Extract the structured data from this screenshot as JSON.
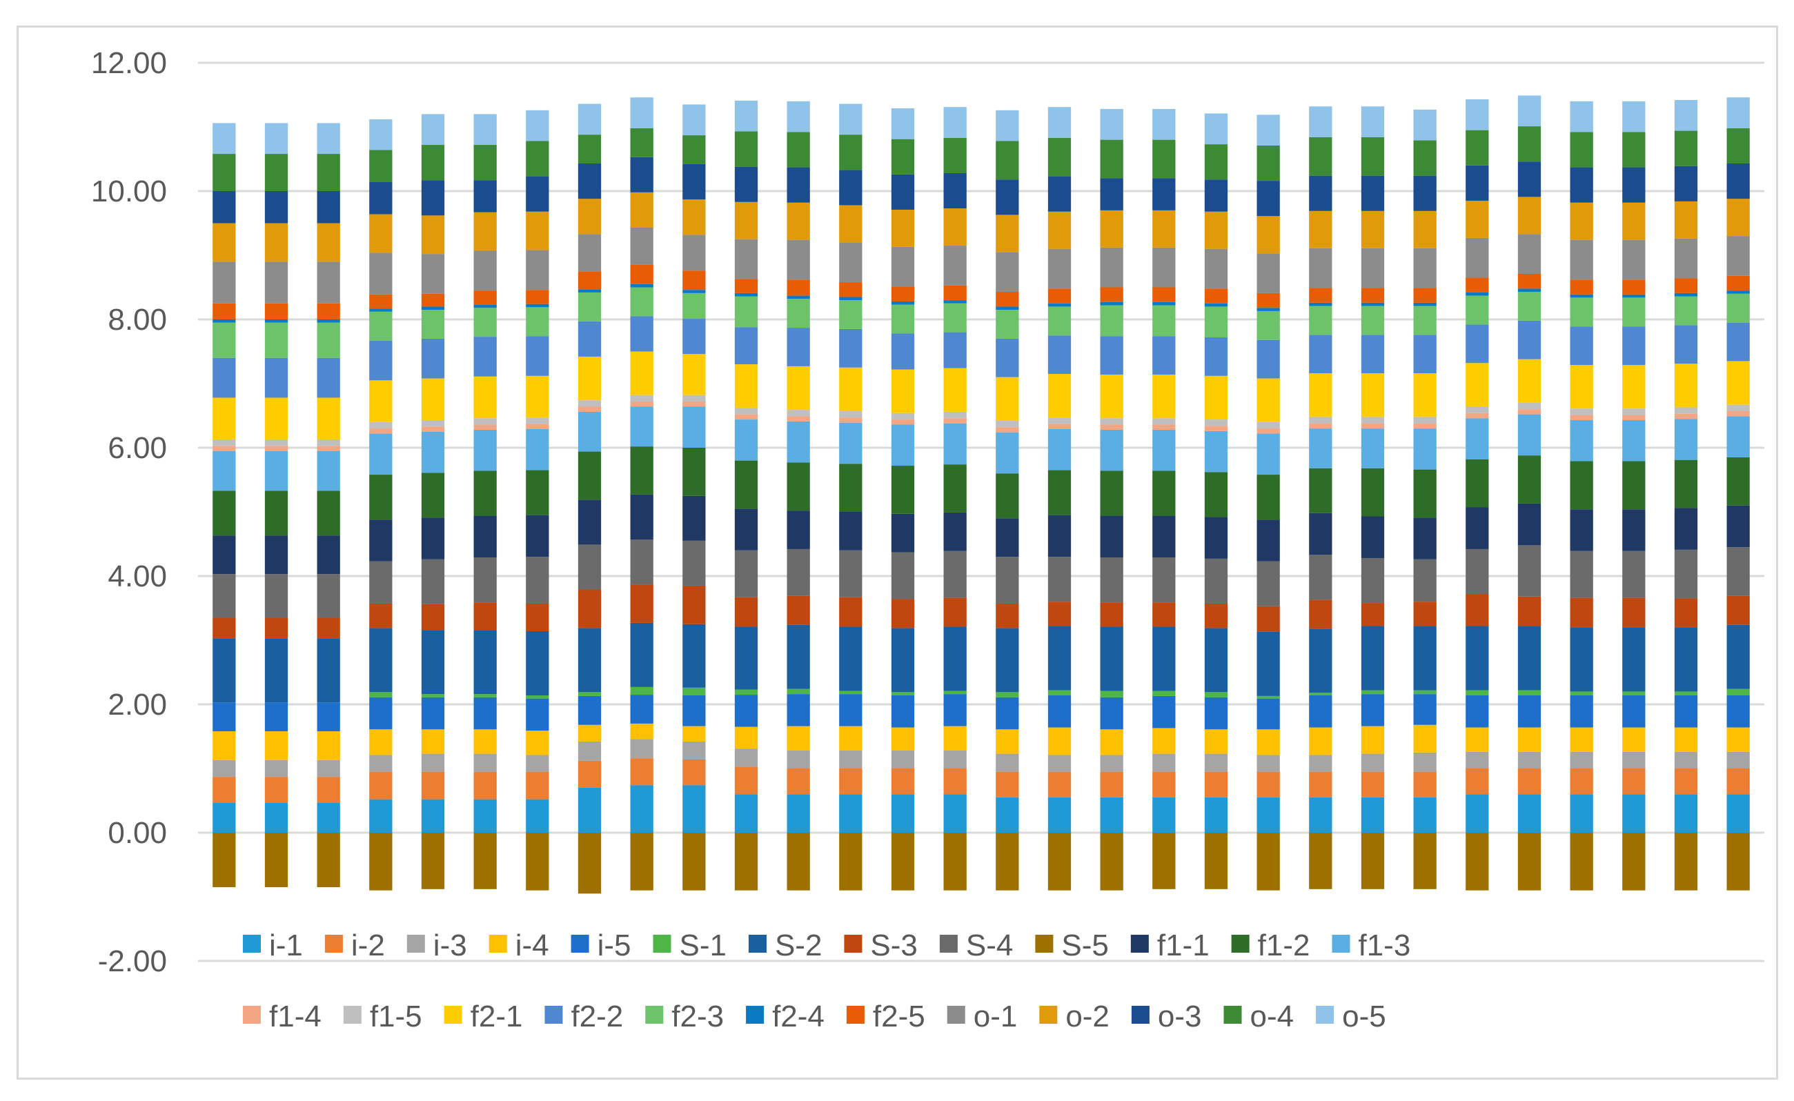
{
  "chart_data": {
    "type": "stacked-bar",
    "title": "",
    "xlabel": "",
    "ylabel": "",
    "ylim": [
      -2,
      12
    ],
    "yticks": [
      "-2.00",
      "0.00",
      "2.00",
      "4.00",
      "6.00",
      "8.00",
      "10.00",
      "12.00"
    ],
    "ytick_values": [
      -2,
      0,
      2,
      4,
      6,
      8,
      10,
      12
    ],
    "grid": true,
    "legend_position": "bottom",
    "bar_count": 30,
    "series": [
      {
        "name": "i-1",
        "color": "#1f9ad6",
        "values": [
          0.47,
          0.47,
          0.47,
          0.52,
          0.52,
          0.52,
          0.52,
          0.7,
          0.74,
          0.74,
          0.6,
          0.6,
          0.6,
          0.6,
          0.6,
          0.55,
          0.55,
          0.55,
          0.55,
          0.55,
          0.55,
          0.55,
          0.55,
          0.55,
          0.6,
          0.6,
          0.6,
          0.6,
          0.6,
          0.6
        ]
      },
      {
        "name": "i-2",
        "color": "#ed7d31",
        "values": [
          0.4,
          0.4,
          0.4,
          0.43,
          0.43,
          0.43,
          0.43,
          0.42,
          0.42,
          0.4,
          0.43,
          0.4,
          0.4,
          0.4,
          0.4,
          0.4,
          0.4,
          0.4,
          0.4,
          0.4,
          0.4,
          0.4,
          0.4,
          0.4,
          0.4,
          0.4,
          0.4,
          0.4,
          0.4,
          0.4
        ]
      },
      {
        "name": "i-3",
        "color": "#a5a5a5",
        "values": [
          0.26,
          0.26,
          0.26,
          0.26,
          0.28,
          0.28,
          0.26,
          0.3,
          0.3,
          0.28,
          0.28,
          0.28,
          0.28,
          0.28,
          0.28,
          0.28,
          0.26,
          0.26,
          0.28,
          0.28,
          0.26,
          0.26,
          0.28,
          0.3,
          0.26,
          0.26,
          0.26,
          0.26,
          0.26,
          0.26
        ]
      },
      {
        "name": "i-4",
        "color": "#ffc000",
        "values": [
          0.45,
          0.45,
          0.45,
          0.4,
          0.38,
          0.38,
          0.38,
          0.26,
          0.24,
          0.24,
          0.34,
          0.38,
          0.38,
          0.36,
          0.38,
          0.38,
          0.43,
          0.4,
          0.4,
          0.38,
          0.4,
          0.43,
          0.43,
          0.43,
          0.38,
          0.38,
          0.38,
          0.38,
          0.38,
          0.38
        ]
      },
      {
        "name": "i-5",
        "color": "#1e6fcc",
        "values": [
          0.45,
          0.45,
          0.45,
          0.5,
          0.5,
          0.5,
          0.5,
          0.45,
          0.45,
          0.48,
          0.5,
          0.5,
          0.5,
          0.5,
          0.5,
          0.5,
          0.5,
          0.5,
          0.5,
          0.5,
          0.48,
          0.5,
          0.5,
          0.48,
          0.5,
          0.5,
          0.5,
          0.5,
          0.5,
          0.5
        ]
      },
      {
        "name": "S-1",
        "color": "#4eb645",
        "values": [
          0.0,
          0.0,
          0.0,
          0.08,
          0.05,
          0.05,
          0.05,
          0.06,
          0.12,
          0.12,
          0.08,
          0.08,
          0.05,
          0.05,
          0.05,
          0.08,
          0.08,
          0.1,
          0.08,
          0.08,
          0.04,
          0.04,
          0.06,
          0.06,
          0.08,
          0.08,
          0.06,
          0.06,
          0.06,
          0.1
        ]
      },
      {
        "name": "S-2",
        "color": "#1a5fa0",
        "values": [
          1.0,
          1.0,
          1.0,
          1.0,
          1.0,
          1.0,
          1.0,
          1.0,
          1.0,
          0.99,
          0.98,
          1.0,
          1.0,
          1.0,
          1.0,
          1.0,
          1.0,
          1.0,
          1.0,
          1.0,
          1.0,
          1.0,
          1.0,
          1.0,
          1.0,
          1.0,
          1.0,
          1.0,
          1.0,
          1.0
        ]
      },
      {
        "name": "S-3",
        "color": "#c0470f",
        "values": [
          0.32,
          0.32,
          0.32,
          0.38,
          0.4,
          0.43,
          0.43,
          0.6,
          0.6,
          0.6,
          0.46,
          0.45,
          0.46,
          0.45,
          0.45,
          0.38,
          0.38,
          0.38,
          0.38,
          0.38,
          0.4,
          0.45,
          0.36,
          0.38,
          0.5,
          0.46,
          0.46,
          0.46,
          0.45,
          0.45
        ]
      },
      {
        "name": "S-4",
        "color": "#6b6b6b",
        "values": [
          0.68,
          0.68,
          0.68,
          0.66,
          0.7,
          0.7,
          0.73,
          0.7,
          0.7,
          0.7,
          0.73,
          0.73,
          0.73,
          0.73,
          0.73,
          0.73,
          0.7,
          0.7,
          0.7,
          0.7,
          0.7,
          0.7,
          0.7,
          0.66,
          0.7,
          0.8,
          0.73,
          0.73,
          0.76,
          0.76
        ]
      },
      {
        "name": "S-5",
        "color": "#9e7000",
        "values": [
          -0.85,
          -0.85,
          -0.85,
          -0.9,
          -0.88,
          -0.88,
          -0.9,
          -0.95,
          -0.9,
          -0.9,
          -0.9,
          -0.9,
          -0.9,
          -0.9,
          -0.9,
          -0.9,
          -0.9,
          -0.9,
          -0.88,
          -0.88,
          -0.9,
          -0.88,
          -0.88,
          -0.88,
          -0.9,
          -0.9,
          -0.9,
          -0.9,
          -0.9,
          -0.9
        ]
      },
      {
        "name": "f1-1",
        "color": "#1f3864",
        "values": [
          0.6,
          0.6,
          0.6,
          0.65,
          0.65,
          0.65,
          0.65,
          0.7,
          0.7,
          0.7,
          0.65,
          0.6,
          0.6,
          0.6,
          0.6,
          0.6,
          0.65,
          0.65,
          0.65,
          0.65,
          0.65,
          0.65,
          0.65,
          0.65,
          0.65,
          0.65,
          0.65,
          0.65,
          0.65,
          0.65
        ]
      },
      {
        "name": "f1-2",
        "color": "#2e6d27",
        "values": [
          0.7,
          0.7,
          0.7,
          0.7,
          0.7,
          0.7,
          0.7,
          0.75,
          0.75,
          0.75,
          0.75,
          0.75,
          0.75,
          0.75,
          0.75,
          0.7,
          0.7,
          0.7,
          0.7,
          0.7,
          0.7,
          0.7,
          0.75,
          0.75,
          0.75,
          0.75,
          0.75,
          0.75,
          0.75,
          0.75
        ]
      },
      {
        "name": "f1-3",
        "color": "#5aaee3",
        "values": [
          0.62,
          0.62,
          0.62,
          0.64,
          0.64,
          0.64,
          0.64,
          0.62,
          0.62,
          0.64,
          0.64,
          0.64,
          0.64,
          0.64,
          0.64,
          0.64,
          0.64,
          0.64,
          0.64,
          0.64,
          0.64,
          0.62,
          0.62,
          0.64,
          0.64,
          0.64,
          0.64,
          0.64,
          0.64,
          0.64
        ]
      },
      {
        "name": "f1-4",
        "color": "#f4a582",
        "values": [
          0.08,
          0.08,
          0.08,
          0.08,
          0.08,
          0.08,
          0.08,
          0.08,
          0.08,
          0.08,
          0.08,
          0.08,
          0.08,
          0.08,
          0.08,
          0.08,
          0.08,
          0.08,
          0.08,
          0.08,
          0.08,
          0.08,
          0.08,
          0.08,
          0.08,
          0.08,
          0.08,
          0.08,
          0.08,
          0.08
        ]
      },
      {
        "name": "f1-5",
        "color": "#bfbfbf",
        "values": [
          0.1,
          0.1,
          0.1,
          0.1,
          0.1,
          0.1,
          0.1,
          0.1,
          0.1,
          0.1,
          0.1,
          0.1,
          0.1,
          0.1,
          0.1,
          0.1,
          0.1,
          0.1,
          0.1,
          0.1,
          0.1,
          0.1,
          0.1,
          0.1,
          0.1,
          0.1,
          0.1,
          0.1,
          0.1,
          0.1
        ]
      },
      {
        "name": "f2-1",
        "color": "#ffcc00",
        "values": [
          0.65,
          0.65,
          0.65,
          0.65,
          0.65,
          0.65,
          0.65,
          0.68,
          0.68,
          0.64,
          0.68,
          0.68,
          0.68,
          0.68,
          0.68,
          0.68,
          0.68,
          0.68,
          0.68,
          0.68,
          0.68,
          0.68,
          0.68,
          0.68,
          0.68,
          0.68,
          0.68,
          0.68,
          0.68,
          0.68
        ]
      },
      {
        "name": "f2-2",
        "color": "#4f87d0",
        "values": [
          0.62,
          0.62,
          0.62,
          0.62,
          0.62,
          0.62,
          0.62,
          0.55,
          0.55,
          0.55,
          0.58,
          0.6,
          0.6,
          0.56,
          0.56,
          0.6,
          0.6,
          0.6,
          0.6,
          0.6,
          0.6,
          0.6,
          0.6,
          0.6,
          0.6,
          0.6,
          0.6,
          0.6,
          0.6,
          0.6
        ]
      },
      {
        "name": "f2-3",
        "color": "#6cc36a",
        "values": [
          0.55,
          0.55,
          0.55,
          0.45,
          0.45,
          0.45,
          0.45,
          0.45,
          0.45,
          0.4,
          0.48,
          0.45,
          0.45,
          0.45,
          0.45,
          0.45,
          0.45,
          0.48,
          0.48,
          0.48,
          0.45,
          0.45,
          0.45,
          0.45,
          0.45,
          0.45,
          0.45,
          0.45,
          0.45,
          0.45
        ]
      },
      {
        "name": "f2-4",
        "color": "#0a7ac4",
        "values": [
          0.05,
          0.05,
          0.05,
          0.05,
          0.05,
          0.05,
          0.05,
          0.05,
          0.05,
          0.05,
          0.05,
          0.05,
          0.05,
          0.05,
          0.05,
          0.05,
          0.05,
          0.05,
          0.05,
          0.05,
          0.05,
          0.05,
          0.05,
          0.05,
          0.05,
          0.05,
          0.05,
          0.05,
          0.05,
          0.05
        ]
      },
      {
        "name": "f2-5",
        "color": "#e85d04",
        "values": [
          0.25,
          0.25,
          0.25,
          0.22,
          0.2,
          0.22,
          0.22,
          0.28,
          0.3,
          0.3,
          0.22,
          0.25,
          0.23,
          0.23,
          0.23,
          0.23,
          0.23,
          0.23,
          0.23,
          0.23,
          0.23,
          0.23,
          0.23,
          0.23,
          0.23,
          0.23,
          0.23,
          0.23,
          0.23,
          0.23
        ]
      },
      {
        "name": "o-1",
        "color": "#8c8c8c",
        "values": [
          0.65,
          0.65,
          0.65,
          0.65,
          0.62,
          0.62,
          0.62,
          0.58,
          0.58,
          0.56,
          0.62,
          0.62,
          0.62,
          0.62,
          0.62,
          0.62,
          0.62,
          0.62,
          0.62,
          0.62,
          0.62,
          0.62,
          0.62,
          0.62,
          0.62,
          0.62,
          0.62,
          0.62,
          0.62,
          0.62
        ]
      },
      {
        "name": "o-2",
        "color": "#e19b0a",
        "values": [
          0.6,
          0.6,
          0.6,
          0.6,
          0.6,
          0.6,
          0.6,
          0.55,
          0.55,
          0.55,
          0.58,
          0.58,
          0.58,
          0.58,
          0.58,
          0.58,
          0.58,
          0.58,
          0.58,
          0.58,
          0.58,
          0.58,
          0.58,
          0.58,
          0.58,
          0.58,
          0.58,
          0.58,
          0.58,
          0.58
        ]
      },
      {
        "name": "o-3",
        "color": "#1a4c8f",
        "values": [
          0.5,
          0.5,
          0.5,
          0.5,
          0.55,
          0.5,
          0.55,
          0.55,
          0.55,
          0.55,
          0.55,
          0.55,
          0.55,
          0.55,
          0.55,
          0.55,
          0.55,
          0.5,
          0.5,
          0.5,
          0.55,
          0.55,
          0.55,
          0.55,
          0.55,
          0.55,
          0.55,
          0.55,
          0.55,
          0.55
        ]
      },
      {
        "name": "o-4",
        "color": "#3c8a34",
        "values": [
          0.58,
          0.58,
          0.58,
          0.5,
          0.55,
          0.55,
          0.55,
          0.45,
          0.45,
          0.45,
          0.55,
          0.55,
          0.55,
          0.55,
          0.55,
          0.6,
          0.6,
          0.6,
          0.6,
          0.55,
          0.55,
          0.6,
          0.6,
          0.55,
          0.55,
          0.55,
          0.55,
          0.55,
          0.55,
          0.55
        ]
      },
      {
        "name": "o-5",
        "color": "#8fc3ea",
        "values": [
          0.48,
          0.48,
          0.48,
          0.48,
          0.48,
          0.48,
          0.48,
          0.48,
          0.48,
          0.48,
          0.48,
          0.48,
          0.48,
          0.48,
          0.48,
          0.48,
          0.48,
          0.48,
          0.48,
          0.48,
          0.48,
          0.48,
          0.48,
          0.48,
          0.48,
          0.48,
          0.48,
          0.48,
          0.48,
          0.48
        ]
      }
    ]
  }
}
